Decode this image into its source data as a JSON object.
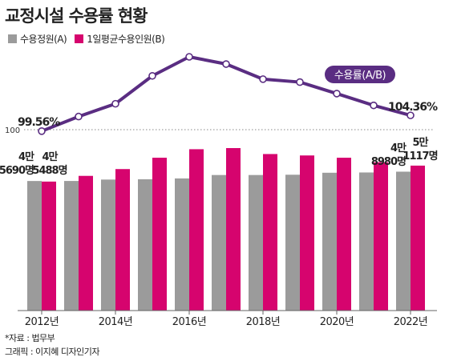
{
  "title": "교정시설 수용률 현황",
  "legend": [
    {
      "label": "수용정원(A)",
      "color": "#9b9b9b"
    },
    {
      "label": "1일평균수용인원(B)",
      "color": "#d6046e"
    }
  ],
  "colors": {
    "capacity": "#9b9b9b",
    "inmates": "#d6046e",
    "rate": "#5a2d82"
  },
  "chart_data": {
    "type": "bar",
    "years": [
      2012,
      2013,
      2014,
      2015,
      2016,
      2017,
      2018,
      2019,
      2020,
      2021,
      2022
    ],
    "x_tick_labels": [
      "2012년",
      "2014년",
      "2016년",
      "2018년",
      "2020년",
      "2022년"
    ],
    "series": [
      {
        "name": "수용정원(A)",
        "values": [
          45690,
          45700,
          46200,
          46300,
          46600,
          47800,
          47800,
          47900,
          48600,
          48700,
          48980
        ]
      },
      {
        "name": "1일평균수용인원(B)",
        "values": [
          45488,
          47500,
          49900,
          53900,
          56900,
          57300,
          55200,
          54700,
          53900,
          52300,
          51117
        ]
      }
    ],
    "rate_line": {
      "name": "수용률(A/B)",
      "values": [
        99.56,
        104.0,
        107.9,
        116.4,
        122.2,
        120.0,
        115.4,
        114.5,
        111.0,
        107.4,
        104.36
      ]
    },
    "reference_line_label": "100",
    "labels": {
      "capacity_2012": [
        "4만",
        "5690명"
      ],
      "inmates_2012": [
        "4만",
        "5488명"
      ],
      "capacity_2022": [
        "4만",
        "8980명"
      ],
      "inmates_2022": [
        "5만",
        "1117명"
      ],
      "rate_2012": "99.56%",
      "rate_2022": "104.36%"
    }
  },
  "source": "*자료 : 법무부",
  "credit": "그래픽 : 이지혜 디자인기자"
}
